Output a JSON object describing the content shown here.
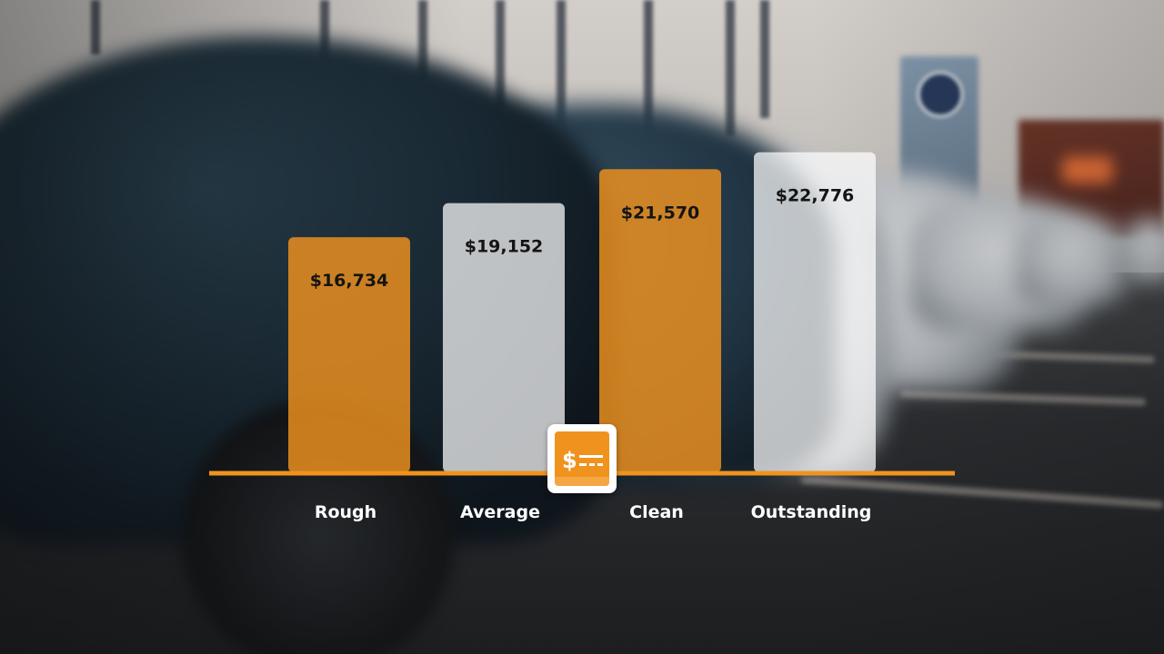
{
  "chart_data": {
    "type": "bar",
    "categories": [
      "Rough",
      "Average",
      "Clean",
      "Outstanding"
    ],
    "values": [
      16734,
      19152,
      21570,
      22776
    ],
    "value_labels": [
      "$16,734",
      "$19,152",
      "$21,570",
      "$22,776"
    ],
    "bar_colors": [
      "#f0931e",
      "#ffffff",
      "#f0931e",
      "#ffffff"
    ],
    "axis_color": "#f0931e",
    "ylim": [
      0,
      26500
    ],
    "title": "",
    "xlabel": "",
    "ylabel": "",
    "grid": false,
    "legend": "none"
  },
  "badge": {
    "icon": "dollar-price-tag-icon",
    "color": "#f0931e"
  }
}
